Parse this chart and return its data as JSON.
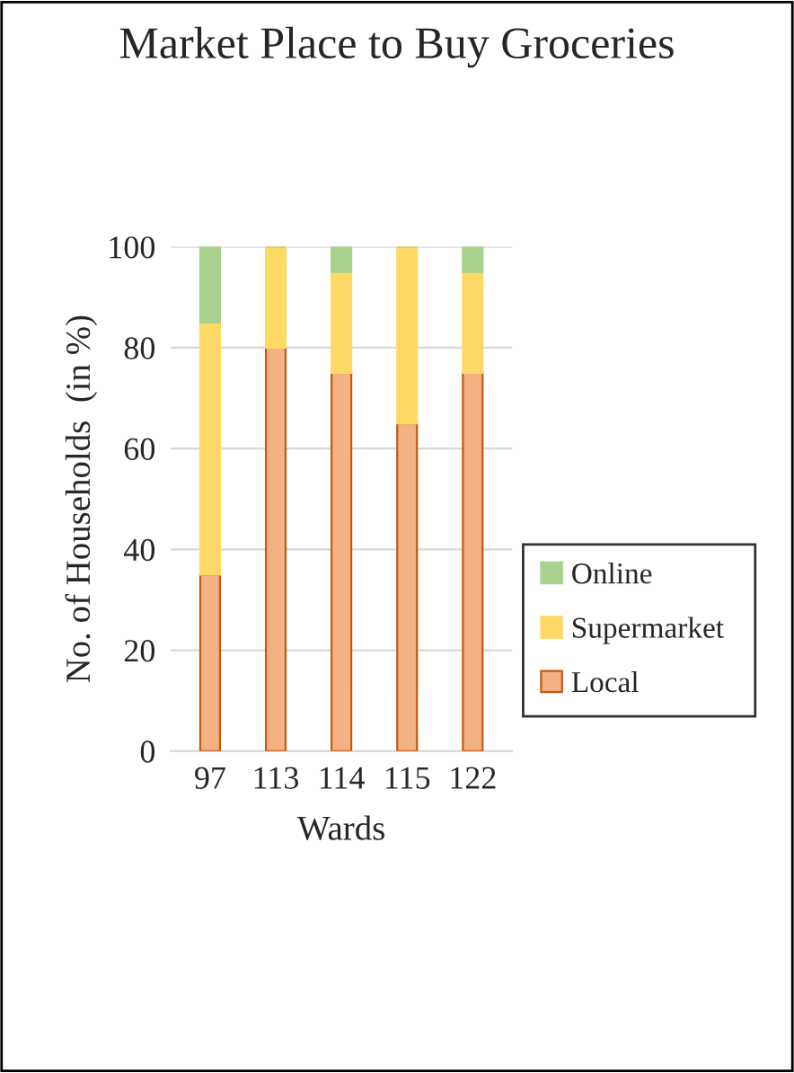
{
  "chart_data": {
    "type": "bar",
    "title": "Market Place to Buy Groceries",
    "xlabel": "Wards",
    "ylabel": "No. of Households  (in %)",
    "categories": [
      "97",
      "113",
      "114",
      "115",
      "122"
    ],
    "stacked": true,
    "series": [
      {
        "name": "Local",
        "color": "#f4b183",
        "values": [
          35,
          80,
          75,
          65,
          75
        ]
      },
      {
        "name": "Supermarket",
        "color": "#ffd966",
        "values": [
          50,
          20,
          20,
          35,
          20
        ]
      },
      {
        "name": "Online",
        "color": "#a9d18e",
        "values": [
          15,
          0,
          5,
          0,
          5
        ]
      }
    ],
    "ylim": [
      0,
      100
    ],
    "yticks": [
      0,
      20,
      40,
      60,
      80,
      100
    ],
    "grid": "y",
    "legend": "right"
  }
}
